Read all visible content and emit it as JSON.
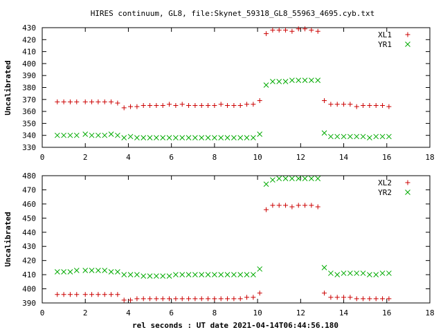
{
  "title": "HIRES continuum, GL8, file:Skynet_59318_GL8_55963_4695.cyb.txt",
  "xlabel": "rel seconds : UT date 2021-04-14T06:44:56.180",
  "colors": {
    "series_a": "#cc0000",
    "series_b": "#00aa00",
    "axis": "#000000"
  },
  "chart_data": [
    {
      "type": "scatter",
      "ylabel": "Uncalibrated",
      "xlim": [
        0,
        18
      ],
      "ylim": [
        330,
        430
      ],
      "xticks": [
        0,
        2,
        4,
        6,
        8,
        10,
        12,
        14,
        16,
        18
      ],
      "yticks": [
        330,
        340,
        350,
        360,
        370,
        380,
        390,
        400,
        410,
        420,
        430
      ],
      "legend_position": "top-right",
      "series": [
        {
          "name": "XL1",
          "marker": "plus",
          "color": "#cc0000",
          "points": [
            [
              0.7,
              368
            ],
            [
              1.0,
              368
            ],
            [
              1.3,
              368
            ],
            [
              1.6,
              368
            ],
            [
              2.0,
              368
            ],
            [
              2.3,
              368
            ],
            [
              2.6,
              368
            ],
            [
              2.9,
              368
            ],
            [
              3.2,
              368
            ],
            [
              3.5,
              367
            ],
            [
              3.8,
              363
            ],
            [
              4.1,
              364
            ],
            [
              4.4,
              364
            ],
            [
              4.7,
              365
            ],
            [
              5.0,
              365
            ],
            [
              5.3,
              365
            ],
            [
              5.6,
              365
            ],
            [
              5.9,
              366
            ],
            [
              6.2,
              365
            ],
            [
              6.5,
              366
            ],
            [
              6.8,
              365
            ],
            [
              7.1,
              365
            ],
            [
              7.4,
              365
            ],
            [
              7.7,
              365
            ],
            [
              8.0,
              365
            ],
            [
              8.3,
              366
            ],
            [
              8.6,
              365
            ],
            [
              8.9,
              365
            ],
            [
              9.2,
              365
            ],
            [
              9.5,
              366
            ],
            [
              9.8,
              366
            ],
            [
              10.1,
              369
            ],
            [
              10.4,
              425
            ],
            [
              10.7,
              428
            ],
            [
              11.0,
              428
            ],
            [
              11.3,
              428
            ],
            [
              11.6,
              427
            ],
            [
              11.9,
              429
            ],
            [
              12.2,
              429
            ],
            [
              12.5,
              428
            ],
            [
              12.8,
              427
            ],
            [
              13.1,
              369
            ],
            [
              13.4,
              366
            ],
            [
              13.7,
              366
            ],
            [
              14.0,
              366
            ],
            [
              14.3,
              366
            ],
            [
              14.6,
              364
            ],
            [
              14.9,
              365
            ],
            [
              15.2,
              365
            ],
            [
              15.5,
              365
            ],
            [
              15.8,
              365
            ],
            [
              16.1,
              364
            ]
          ]
        },
        {
          "name": "YR1",
          "marker": "cross",
          "color": "#00aa00",
          "points": [
            [
              0.7,
              340
            ],
            [
              1.0,
              340
            ],
            [
              1.3,
              340
            ],
            [
              1.6,
              340
            ],
            [
              2.0,
              341
            ],
            [
              2.3,
              340
            ],
            [
              2.6,
              340
            ],
            [
              2.9,
              340
            ],
            [
              3.2,
              341
            ],
            [
              3.5,
              340
            ],
            [
              3.8,
              338
            ],
            [
              4.1,
              339
            ],
            [
              4.4,
              338
            ],
            [
              4.7,
              338
            ],
            [
              5.0,
              338
            ],
            [
              5.3,
              338
            ],
            [
              5.6,
              338
            ],
            [
              5.9,
              338
            ],
            [
              6.2,
              338
            ],
            [
              6.5,
              338
            ],
            [
              6.8,
              338
            ],
            [
              7.1,
              338
            ],
            [
              7.4,
              338
            ],
            [
              7.7,
              338
            ],
            [
              8.0,
              338
            ],
            [
              8.3,
              338
            ],
            [
              8.6,
              338
            ],
            [
              8.9,
              338
            ],
            [
              9.2,
              338
            ],
            [
              9.5,
              338
            ],
            [
              9.8,
              338
            ],
            [
              10.1,
              341
            ],
            [
              10.4,
              382
            ],
            [
              10.7,
              385
            ],
            [
              11.0,
              385
            ],
            [
              11.3,
              385
            ],
            [
              11.6,
              386
            ],
            [
              11.9,
              386
            ],
            [
              12.2,
              386
            ],
            [
              12.5,
              386
            ],
            [
              12.8,
              386
            ],
            [
              13.1,
              342
            ],
            [
              13.4,
              339
            ],
            [
              13.7,
              339
            ],
            [
              14.0,
              339
            ],
            [
              14.3,
              339
            ],
            [
              14.6,
              339
            ],
            [
              14.9,
              339
            ],
            [
              15.2,
              338
            ],
            [
              15.5,
              339
            ],
            [
              15.8,
              339
            ],
            [
              16.1,
              339
            ]
          ]
        }
      ]
    },
    {
      "type": "scatter",
      "ylabel": "Uncalibrated",
      "xlim": [
        0,
        18
      ],
      "ylim": [
        390,
        480
      ],
      "xticks": [
        0,
        2,
        4,
        6,
        8,
        10,
        12,
        14,
        16,
        18
      ],
      "yticks": [
        390,
        400,
        410,
        420,
        430,
        440,
        450,
        460,
        470,
        480
      ],
      "legend_position": "top-right",
      "series": [
        {
          "name": "XL2",
          "marker": "plus",
          "color": "#cc0000",
          "points": [
            [
              0.7,
              396
            ],
            [
              1.0,
              396
            ],
            [
              1.3,
              396
            ],
            [
              1.6,
              396
            ],
            [
              2.0,
              396
            ],
            [
              2.3,
              396
            ],
            [
              2.6,
              396
            ],
            [
              2.9,
              396
            ],
            [
              3.2,
              396
            ],
            [
              3.5,
              396
            ],
            [
              3.8,
              392
            ],
            [
              4.1,
              392
            ],
            [
              4.4,
              393
            ],
            [
              4.7,
              393
            ],
            [
              5.0,
              393
            ],
            [
              5.3,
              393
            ],
            [
              5.6,
              393
            ],
            [
              5.9,
              393
            ],
            [
              6.2,
              393
            ],
            [
              6.5,
              393
            ],
            [
              6.8,
              393
            ],
            [
              7.1,
              393
            ],
            [
              7.4,
              393
            ],
            [
              7.7,
              393
            ],
            [
              8.0,
              393
            ],
            [
              8.3,
              393
            ],
            [
              8.6,
              393
            ],
            [
              8.9,
              393
            ],
            [
              9.2,
              393
            ],
            [
              9.5,
              394
            ],
            [
              9.8,
              394
            ],
            [
              10.1,
              397
            ],
            [
              10.4,
              456
            ],
            [
              10.7,
              459
            ],
            [
              11.0,
              459
            ],
            [
              11.3,
              459
            ],
            [
              11.6,
              458
            ],
            [
              11.9,
              459
            ],
            [
              12.2,
              459
            ],
            [
              12.5,
              459
            ],
            [
              12.8,
              458
            ],
            [
              13.1,
              397
            ],
            [
              13.4,
              394
            ],
            [
              13.7,
              394
            ],
            [
              14.0,
              394
            ],
            [
              14.3,
              394
            ],
            [
              14.6,
              393
            ],
            [
              14.9,
              393
            ],
            [
              15.2,
              393
            ],
            [
              15.5,
              393
            ],
            [
              15.8,
              393
            ],
            [
              16.1,
              393
            ]
          ]
        },
        {
          "name": "YR2",
          "marker": "cross",
          "color": "#00aa00",
          "points": [
            [
              0.7,
              412
            ],
            [
              1.0,
              412
            ],
            [
              1.3,
              412
            ],
            [
              1.6,
              413
            ],
            [
              2.0,
              413
            ],
            [
              2.3,
              413
            ],
            [
              2.6,
              413
            ],
            [
              2.9,
              413
            ],
            [
              3.2,
              412
            ],
            [
              3.5,
              412
            ],
            [
              3.8,
              410
            ],
            [
              4.1,
              410
            ],
            [
              4.4,
              410
            ],
            [
              4.7,
              409
            ],
            [
              5.0,
              409
            ],
            [
              5.3,
              409
            ],
            [
              5.6,
              409
            ],
            [
              5.9,
              409
            ],
            [
              6.2,
              410
            ],
            [
              6.5,
              410
            ],
            [
              6.8,
              410
            ],
            [
              7.1,
              410
            ],
            [
              7.4,
              410
            ],
            [
              7.7,
              410
            ],
            [
              8.0,
              410
            ],
            [
              8.3,
              410
            ],
            [
              8.6,
              410
            ],
            [
              8.9,
              410
            ],
            [
              9.2,
              410
            ],
            [
              9.5,
              410
            ],
            [
              9.8,
              410
            ],
            [
              10.1,
              414
            ],
            [
              10.4,
              474
            ],
            [
              10.7,
              477
            ],
            [
              11.0,
              478
            ],
            [
              11.3,
              478
            ],
            [
              11.6,
              478
            ],
            [
              11.9,
              478
            ],
            [
              12.2,
              478
            ],
            [
              12.5,
              478
            ],
            [
              12.8,
              478
            ],
            [
              13.1,
              415
            ],
            [
              13.4,
              411
            ],
            [
              13.7,
              410
            ],
            [
              14.0,
              411
            ],
            [
              14.3,
              411
            ],
            [
              14.6,
              411
            ],
            [
              14.9,
              411
            ],
            [
              15.2,
              410
            ],
            [
              15.5,
              410
            ],
            [
              15.8,
              411
            ],
            [
              16.1,
              411
            ]
          ]
        }
      ]
    }
  ]
}
